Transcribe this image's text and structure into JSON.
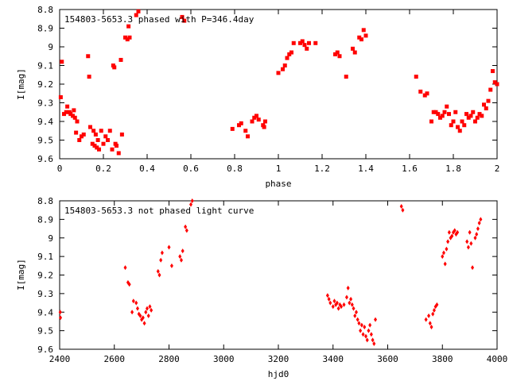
{
  "chart_data": [
    {
      "type": "scatter",
      "title": "154803-5653.3 phased with P=346.4day",
      "xlabel": "phase",
      "ylabel": "I[mag]",
      "xlim": [
        0,
        2
      ],
      "ylim": [
        8.8,
        9.6
      ],
      "y_inverted": true,
      "grid": false,
      "x_ticks": [
        "0",
        "0.2",
        "0.4",
        "0.6",
        "0.8",
        "1",
        "1.2",
        "1.4",
        "1.6",
        "1.8",
        "2"
      ],
      "y_ticks": [
        "8.8",
        "8.9",
        "9",
        "9.1",
        "9.2",
        "9.3",
        "9.4",
        "9.5",
        "9.6"
      ],
      "marker_color": "#ff0000",
      "series": [
        {
          "points": [
            [
              0.005,
              9.27
            ],
            [
              0.01,
              9.08
            ],
            [
              0.02,
              9.36
            ],
            [
              0.03,
              9.35
            ],
            [
              0.035,
              9.32
            ],
            [
              0.045,
              9.35
            ],
            [
              0.05,
              9.36
            ],
            [
              0.06,
              9.37
            ],
            [
              0.065,
              9.34
            ],
            [
              0.07,
              9.38
            ],
            [
              0.075,
              9.46
            ],
            [
              0.08,
              9.4
            ],
            [
              0.09,
              9.5
            ],
            [
              0.1,
              9.48
            ],
            [
              0.11,
              9.47
            ],
            [
              0.13,
              9.05
            ],
            [
              0.135,
              9.16
            ],
            [
              0.14,
              9.43
            ],
            [
              0.15,
              9.52
            ],
            [
              0.155,
              9.45
            ],
            [
              0.16,
              9.53
            ],
            [
              0.165,
              9.47
            ],
            [
              0.17,
              9.54
            ],
            [
              0.175,
              9.5
            ],
            [
              0.18,
              9.55
            ],
            [
              0.19,
              9.45
            ],
            [
              0.2,
              9.52
            ],
            [
              0.21,
              9.48
            ],
            [
              0.22,
              9.5
            ],
            [
              0.23,
              9.45
            ],
            [
              0.24,
              9.55
            ],
            [
              0.245,
              9.1
            ],
            [
              0.25,
              9.11
            ],
            [
              0.255,
              9.52
            ],
            [
              0.26,
              9.53
            ],
            [
              0.27,
              9.57
            ],
            [
              0.28,
              9.07
            ],
            [
              0.285,
              9.47
            ],
            [
              0.3,
              8.95
            ],
            [
              0.31,
              8.96
            ],
            [
              0.315,
              8.89
            ],
            [
              0.32,
              8.95
            ],
            [
              0.35,
              8.83
            ],
            [
              0.36,
              8.81
            ],
            [
              0.56,
              8.84
            ],
            [
              0.57,
              8.86
            ],
            [
              0.79,
              9.44
            ],
            [
              0.82,
              9.42
            ],
            [
              0.83,
              9.41
            ],
            [
              0.85,
              9.45
            ],
            [
              0.86,
              9.48
            ],
            [
              0.88,
              9.4
            ],
            [
              0.89,
              9.38
            ],
            [
              0.9,
              9.37
            ],
            [
              0.91,
              9.39
            ],
            [
              0.93,
              9.42
            ],
            [
              0.935,
              9.43
            ],
            [
              0.94,
              9.4
            ],
            [
              1.0,
              9.14
            ],
            [
              1.02,
              9.12
            ],
            [
              1.03,
              9.1
            ],
            [
              1.04,
              9.06
            ],
            [
              1.05,
              9.04
            ],
            [
              1.06,
              9.03
            ],
            [
              1.07,
              8.98
            ],
            [
              1.1,
              8.98
            ],
            [
              1.11,
              8.97
            ],
            [
              1.12,
              8.99
            ],
            [
              1.13,
              9.01
            ],
            [
              1.14,
              8.98
            ],
            [
              1.17,
              8.98
            ],
            [
              1.26,
              9.04
            ],
            [
              1.27,
              9.03
            ],
            [
              1.28,
              9.05
            ],
            [
              1.31,
              9.16
            ],
            [
              1.34,
              9.01
            ],
            [
              1.35,
              9.03
            ],
            [
              1.37,
              8.95
            ],
            [
              1.38,
              8.96
            ],
            [
              1.39,
              8.91
            ],
            [
              1.4,
              8.94
            ],
            [
              1.63,
              9.16
            ],
            [
              1.65,
              9.24
            ],
            [
              1.67,
              9.26
            ],
            [
              1.68,
              9.25
            ],
            [
              1.7,
              9.4
            ],
            [
              1.71,
              9.35
            ],
            [
              1.72,
              9.35
            ],
            [
              1.73,
              9.36
            ],
            [
              1.74,
              9.38
            ],
            [
              1.75,
              9.37
            ],
            [
              1.76,
              9.35
            ],
            [
              1.77,
              9.32
            ],
            [
              1.78,
              9.36
            ],
            [
              1.79,
              9.42
            ],
            [
              1.8,
              9.4
            ],
            [
              1.81,
              9.35
            ],
            [
              1.82,
              9.43
            ],
            [
              1.83,
              9.45
            ],
            [
              1.84,
              9.4
            ],
            [
              1.85,
              9.42
            ],
            [
              1.86,
              9.36
            ],
            [
              1.87,
              9.38
            ],
            [
              1.88,
              9.37
            ],
            [
              1.89,
              9.35
            ],
            [
              1.9,
              9.4
            ],
            [
              1.91,
              9.38
            ],
            [
              1.92,
              9.36
            ],
            [
              1.93,
              9.37
            ],
            [
              1.94,
              9.31
            ],
            [
              1.95,
              9.33
            ],
            [
              1.96,
              9.29
            ],
            [
              1.97,
              9.23
            ],
            [
              1.98,
              9.13
            ],
            [
              1.99,
              9.19
            ],
            [
              2.0,
              9.2
            ]
          ]
        }
      ]
    },
    {
      "type": "scatter",
      "title": "154803-5653.3 not phased light curve",
      "xlabel": "hjd0",
      "ylabel": "I[mag]",
      "xlim": [
        2400,
        4000
      ],
      "ylim": [
        8.8,
        9.6
      ],
      "y_inverted": true,
      "grid": false,
      "x_ticks": [
        "2400",
        "2600",
        "2800",
        "3000",
        "3200",
        "3400",
        "3600",
        "3800",
        "4000"
      ],
      "y_ticks": [
        "8.8",
        "8.9",
        "9",
        "9.1",
        "9.2",
        "9.3",
        "9.4",
        "9.5",
        "9.6"
      ],
      "marker_color": "#ff0000",
      "series": [
        {
          "points": [
            [
              2402,
              9.4
            ],
            [
              2403,
              9.43
            ],
            [
              2640,
              9.16
            ],
            [
              2650,
              9.24
            ],
            [
              2655,
              9.25
            ],
            [
              2665,
              9.4
            ],
            [
              2670,
              9.34
            ],
            [
              2680,
              9.35
            ],
            [
              2685,
              9.38
            ],
            [
              2690,
              9.41
            ],
            [
              2695,
              9.42
            ],
            [
              2700,
              9.44
            ],
            [
              2705,
              9.43
            ],
            [
              2710,
              9.46
            ],
            [
              2715,
              9.4
            ],
            [
              2720,
              9.38
            ],
            [
              2725,
              9.42
            ],
            [
              2730,
              9.37
            ],
            [
              2735,
              9.39
            ],
            [
              2760,
              9.18
            ],
            [
              2765,
              9.2
            ],
            [
              2770,
              9.12
            ],
            [
              2775,
              9.08
            ],
            [
              2800,
              9.05
            ],
            [
              2810,
              9.15
            ],
            [
              2840,
              9.1
            ],
            [
              2845,
              9.12
            ],
            [
              2850,
              9.07
            ],
            [
              2860,
              8.94
            ],
            [
              2865,
              8.96
            ],
            [
              2880,
              8.82
            ],
            [
              2885,
              8.8
            ],
            [
              3380,
              9.31
            ],
            [
              3385,
              9.33
            ],
            [
              3390,
              9.35
            ],
            [
              3400,
              9.37
            ],
            [
              3405,
              9.34
            ],
            [
              3410,
              9.36
            ],
            [
              3415,
              9.35
            ],
            [
              3420,
              9.38
            ],
            [
              3425,
              9.36
            ],
            [
              3430,
              9.37
            ],
            [
              3440,
              9.36
            ],
            [
              3450,
              9.32
            ],
            [
              3455,
              9.27
            ],
            [
              3460,
              9.35
            ],
            [
              3465,
              9.33
            ],
            [
              3470,
              9.36
            ],
            [
              3475,
              9.38
            ],
            [
              3480,
              9.42
            ],
            [
              3485,
              9.4
            ],
            [
              3490,
              9.44
            ],
            [
              3495,
              9.46
            ],
            [
              3500,
              9.5
            ],
            [
              3505,
              9.47
            ],
            [
              3510,
              9.52
            ],
            [
              3515,
              9.48
            ],
            [
              3520,
              9.53
            ],
            [
              3525,
              9.55
            ],
            [
              3530,
              9.5
            ],
            [
              3535,
              9.47
            ],
            [
              3540,
              9.52
            ],
            [
              3545,
              9.55
            ],
            [
              3550,
              9.57
            ],
            [
              3555,
              9.44
            ],
            [
              3650,
              8.83
            ],
            [
              3655,
              8.85
            ],
            [
              3740,
              9.44
            ],
            [
              3750,
              9.42
            ],
            [
              3755,
              9.46
            ],
            [
              3760,
              9.48
            ],
            [
              3765,
              9.41
            ],
            [
              3770,
              9.39
            ],
            [
              3775,
              9.37
            ],
            [
              3780,
              9.36
            ],
            [
              3800,
              9.1
            ],
            [
              3805,
              9.08
            ],
            [
              3810,
              9.14
            ],
            [
              3815,
              9.06
            ],
            [
              3820,
              9.02
            ],
            [
              3825,
              8.97
            ],
            [
              3830,
              9.0
            ],
            [
              3835,
              8.99
            ],
            [
              3840,
              8.97
            ],
            [
              3845,
              8.96
            ],
            [
              3850,
              8.98
            ],
            [
              3855,
              8.97
            ],
            [
              3890,
              9.02
            ],
            [
              3895,
              9.05
            ],
            [
              3900,
              8.97
            ],
            [
              3905,
              9.03
            ],
            [
              3910,
              9.16
            ],
            [
              3920,
              9.0
            ],
            [
              3925,
              8.98
            ],
            [
              3930,
              8.95
            ],
            [
              3935,
              8.92
            ],
            [
              3940,
              8.9
            ]
          ]
        }
      ]
    }
  ]
}
